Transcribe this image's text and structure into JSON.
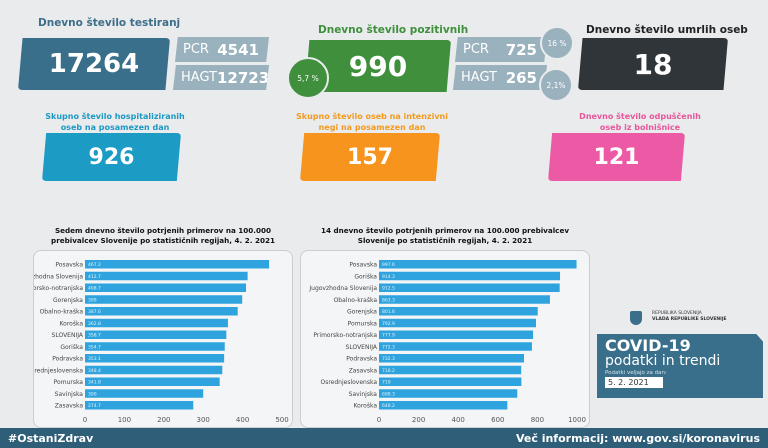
{
  "tests": {
    "title": "Dnevno število testiranj",
    "total": "17264",
    "pcr_label": "PCR",
    "pcr": "4541",
    "hagt_label": "HAGT",
    "hagt": "12723"
  },
  "positive": {
    "title": "Dnevno število pozitivnih",
    "total": "990",
    "share": "5,7 %",
    "pcr_label": "PCR",
    "pcr": "725",
    "pcr_share": "16 %",
    "hagt_label": "HAGT",
    "hagt": "265",
    "hagt_share": "2,1%"
  },
  "deaths": {
    "title": "Dnevno število umrlih oseb",
    "total": "18"
  },
  "hospital": {
    "title1": "Skupno število hospitaliziranih",
    "title2": "oseb na posamezen dan",
    "total": "926"
  },
  "icu": {
    "title1": "Skupno število oseb na intenzivni",
    "title2": "negi na posamezen dan",
    "total": "157"
  },
  "discharged": {
    "title1": "Dnevno število odpuščenih",
    "title2": "oseb iz bolnišnice",
    "total": "121"
  },
  "colors": {
    "tests": "#3a6f8c",
    "positive": "#3f8f3c",
    "deaths": "#2f3538",
    "hospital": "#1c9cc4",
    "icu": "#f7941d",
    "discharged": "#ec5aa6",
    "bar": "#2ea3dd",
    "footer": "#2f5f78"
  },
  "chart_data": [
    {
      "type": "bar",
      "orientation": "horizontal",
      "title1": "Sedem dnevno število potrjenih primerov na 100.000",
      "title2": "prebivalcev Slovenije po statističnih regijah, 4. 2. 2021",
      "categories": [
        "Posavska",
        "Jugovzhodna Slovenija",
        "Primorsko-notranjska",
        "Gorenjska",
        "Obalno-kraška",
        "Koroška",
        "SLOVENIJA",
        "Goriška",
        "Podravska",
        "Osrednjeslovenska",
        "Pomurska",
        "Savinjska",
        "Zasavska"
      ],
      "values": [
        467.2,
        412.7,
        408.7,
        399,
        387.6,
        362.8,
        358.7,
        354.7,
        353.1,
        348.4,
        341.8,
        300,
        274.7
      ],
      "xlim": [
        0,
        500
      ],
      "xticks": [
        0,
        100,
        200,
        300,
        400,
        500
      ]
    },
    {
      "type": "bar",
      "orientation": "horizontal",
      "title1": "14 dnevno število potrjenih primerov na 100.000 prebivalcev",
      "title2": "Slovenije po statističnih regijah, 4. 2. 2021",
      "categories": [
        "Posavska",
        "Goriška",
        "Jugovzhodna Slovenija",
        "Obalno-kraška",
        "Gorenjska",
        "Pomurska",
        "Primorsko-notranjska",
        "SLOVENIJA",
        "Podravska",
        "Zasavska",
        "Osrednjeslovenska",
        "Savinjska",
        "Koroška"
      ],
      "values": [
        997.6,
        914.3,
        912.5,
        863.3,
        801.6,
        792.9,
        777.9,
        772.3,
        732.3,
        718.2,
        719,
        698.3,
        648.2
      ],
      "xlim": [
        0,
        1000
      ],
      "xticks": [
        0,
        200,
        400,
        600,
        800,
        1000
      ]
    }
  ],
  "brand": {
    "line1": "REPUBLIKA SLOVENIJA",
    "line2": "VLADA REPUBLIKE SLOVENIJE",
    "title": "COVID-19",
    "subtitle": "podatki in trendi",
    "date_label": "Podatki veljajo za dan:",
    "date": "5. 2. 2021"
  },
  "footer": {
    "hashtag": "#OstaniZdrav",
    "info": "Več informacij: www.gov.si/koronavirus"
  }
}
